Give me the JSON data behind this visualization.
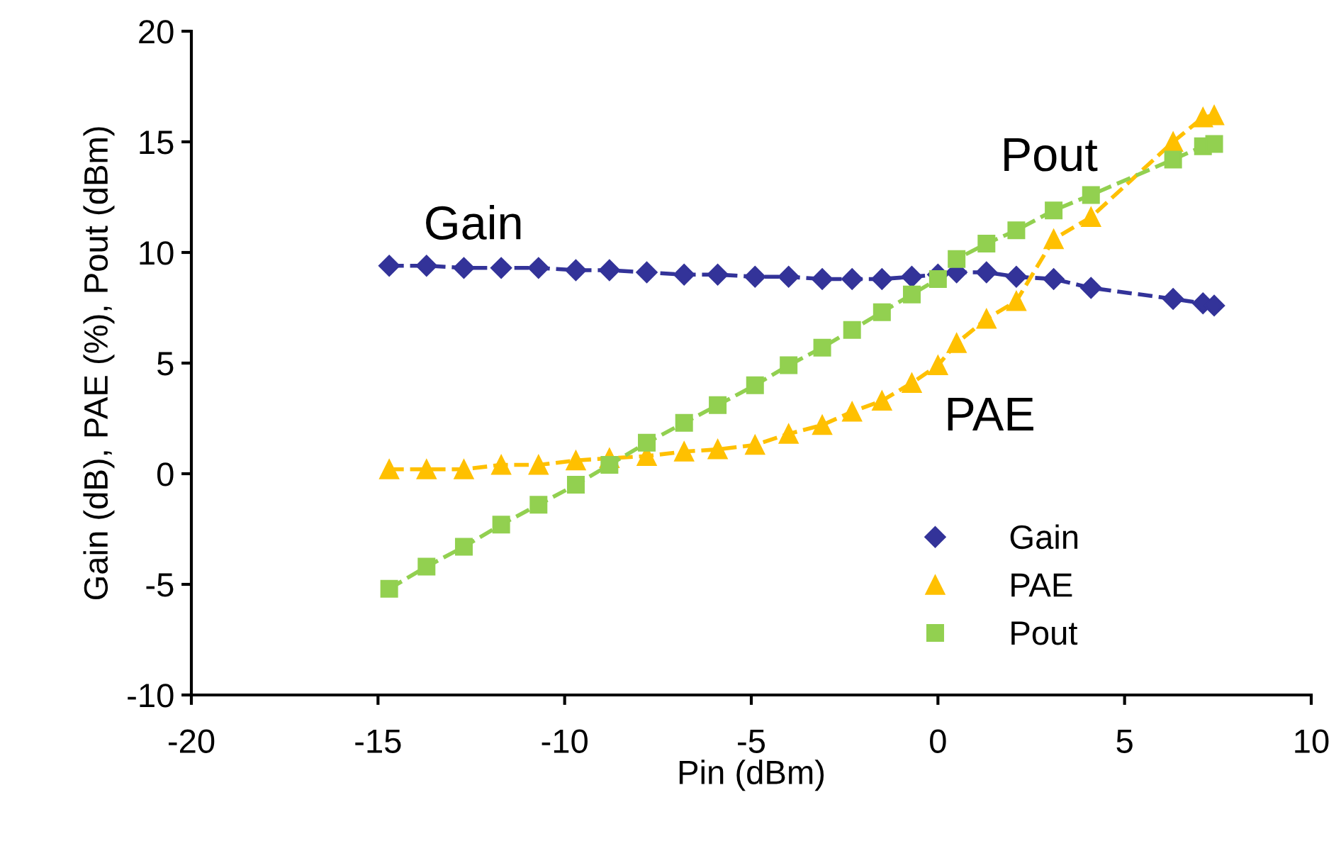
{
  "chart_data": {
    "type": "line",
    "xlabel": "Pin (dBm)",
    "ylabel": "Gain (dB), PAE (%), Pout (dBm)",
    "x": [
      -14.7,
      -13.7,
      -12.7,
      -11.7,
      -10.7,
      -9.7,
      -8.8,
      -7.8,
      -6.8,
      -5.9,
      -4.9,
      -4.0,
      -3.1,
      -2.3,
      -1.5,
      -0.7,
      0.0,
      0.5,
      1.3,
      2.1,
      3.1,
      4.1,
      6.3,
      7.1,
      7.4
    ],
    "series": [
      {
        "name": "Gain",
        "color": "#333399",
        "marker": "diamond",
        "line_style": "dashed",
        "values": [
          9.4,
          9.4,
          9.3,
          9.3,
          9.3,
          9.2,
          9.2,
          9.1,
          9.0,
          9.0,
          8.9,
          8.9,
          8.8,
          8.8,
          8.8,
          8.9,
          9.0,
          9.1,
          9.1,
          8.9,
          8.8,
          8.4,
          7.9,
          7.7,
          7.6
        ]
      },
      {
        "name": "PAE",
        "color": "#ffc000",
        "marker": "triangle",
        "line_style": "dashed",
        "values": [
          0.2,
          0.2,
          0.2,
          0.4,
          0.4,
          0.6,
          0.7,
          0.8,
          1.0,
          1.1,
          1.3,
          1.8,
          2.2,
          2.8,
          3.3,
          4.1,
          4.9,
          5.9,
          7.0,
          7.8,
          10.6,
          11.6,
          15.0,
          16.1,
          16.2
        ]
      },
      {
        "name": "Pout",
        "color": "#92d050",
        "marker": "square",
        "line_style": "dashed",
        "values": [
          -5.2,
          -4.2,
          -3.3,
          -2.3,
          -1.4,
          -0.5,
          0.4,
          1.4,
          2.3,
          3.1,
          4.0,
          4.9,
          5.7,
          6.5,
          7.3,
          8.1,
          8.8,
          9.7,
          10.4,
          11.0,
          11.9,
          12.6,
          14.2,
          14.8,
          14.9
        ]
      }
    ],
    "annotations": [
      "Gain",
      "PAE",
      "Pout"
    ],
    "xlim": [
      -20,
      10
    ],
    "xticks": [
      -20,
      -15,
      -10,
      -5,
      0,
      5,
      10
    ],
    "ylim": [
      -10,
      20
    ],
    "yticks": [
      -10,
      -5,
      0,
      5,
      10,
      15,
      20
    ],
    "grid": false,
    "legend": "bottom right"
  }
}
